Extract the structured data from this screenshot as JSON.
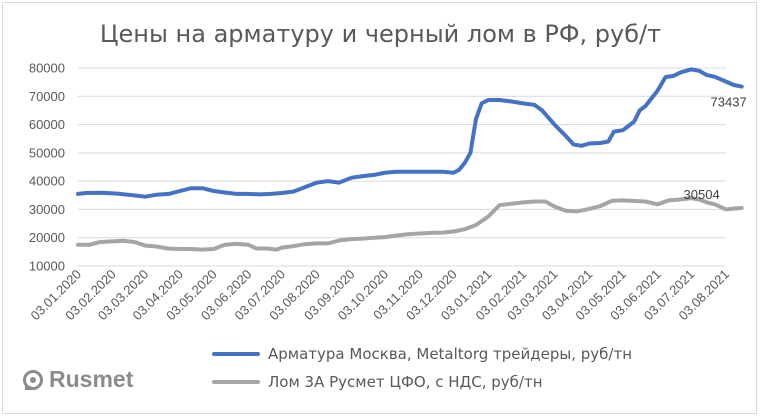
{
  "chart_data": {
    "type": "line",
    "title": "Цены на арматуру и черный лом в РФ, руб/т",
    "ylim": [
      10000,
      80000
    ],
    "yticks": [
      10000,
      20000,
      30000,
      40000,
      50000,
      60000,
      70000,
      80000
    ],
    "xlim": [
      "2020-01-03",
      "2021-08-20"
    ],
    "xticks": [
      {
        "date": "2020-01-03",
        "label": "03.01.2020"
      },
      {
        "date": "2020-02-03",
        "label": "03.02.2020"
      },
      {
        "date": "2020-03-03",
        "label": "03.03.2020"
      },
      {
        "date": "2020-04-03",
        "label": "03.04.2020"
      },
      {
        "date": "2020-05-03",
        "label": "03.05.2020"
      },
      {
        "date": "2020-06-03",
        "label": "03.06.2020"
      },
      {
        "date": "2020-07-03",
        "label": "03.07.2020"
      },
      {
        "date": "2020-08-03",
        "label": "03.08.2020"
      },
      {
        "date": "2020-09-03",
        "label": "03.09.2020"
      },
      {
        "date": "2020-10-03",
        "label": "03.10.2020"
      },
      {
        "date": "2020-11-03",
        "label": "03.11.2020"
      },
      {
        "date": "2020-12-03",
        "label": "03.12.2020"
      },
      {
        "date": "2021-01-03",
        "label": "03.01.2021"
      },
      {
        "date": "2021-02-03",
        "label": "03.02.2021"
      },
      {
        "date": "2021-03-03",
        "label": "03.03.2021"
      },
      {
        "date": "2021-04-03",
        "label": "03.04.2021"
      },
      {
        "date": "2021-05-03",
        "label": "03.05.2021"
      },
      {
        "date": "2021-06-03",
        "label": "03.06.2021"
      },
      {
        "date": "2021-07-03",
        "label": "03.07.2021"
      },
      {
        "date": "2021-08-03",
        "label": "03.08.2021"
      }
    ],
    "grid": true,
    "legend": "bottom",
    "series": [
      {
        "name": "Арматура Москва, Metaltorg трейдеры, руб/тн",
        "color": "#4472c4",
        "end_label": "73437",
        "points": [
          [
            "2020-01-03",
            35500
          ],
          [
            "2020-01-10",
            35800
          ],
          [
            "2020-01-24",
            35900
          ],
          [
            "2020-02-07",
            35600
          ],
          [
            "2020-02-21",
            35000
          ],
          [
            "2020-03-03",
            34500
          ],
          [
            "2020-03-13",
            35200
          ],
          [
            "2020-03-24",
            35500
          ],
          [
            "2020-04-03",
            36500
          ],
          [
            "2020-04-13",
            37500
          ],
          [
            "2020-04-23",
            37500
          ],
          [
            "2020-05-03",
            36500
          ],
          [
            "2020-05-13",
            36000
          ],
          [
            "2020-05-23",
            35500
          ],
          [
            "2020-06-03",
            35500
          ],
          [
            "2020-06-13",
            35300
          ],
          [
            "2020-06-23",
            35500
          ],
          [
            "2020-07-03",
            35800
          ],
          [
            "2020-07-13",
            36300
          ],
          [
            "2020-07-23",
            37800
          ],
          [
            "2020-08-03",
            39500
          ],
          [
            "2020-08-13",
            40000
          ],
          [
            "2020-08-23",
            39500
          ],
          [
            "2020-09-03",
            41200
          ],
          [
            "2020-09-13",
            41800
          ],
          [
            "2020-09-23",
            42200
          ],
          [
            "2020-10-03",
            43000
          ],
          [
            "2020-10-13",
            43300
          ],
          [
            "2020-10-23",
            43300
          ],
          [
            "2020-11-03",
            43300
          ],
          [
            "2020-11-13",
            43300
          ],
          [
            "2020-11-23",
            43300
          ],
          [
            "2020-12-03",
            43000
          ],
          [
            "2020-12-08",
            44000
          ],
          [
            "2020-12-13",
            46500
          ],
          [
            "2020-12-18",
            50000
          ],
          [
            "2020-12-23",
            62000
          ],
          [
            "2020-12-28",
            67500
          ],
          [
            "2021-01-03",
            68700
          ],
          [
            "2021-01-13",
            68700
          ],
          [
            "2021-01-23",
            68200
          ],
          [
            "2021-02-03",
            67500
          ],
          [
            "2021-02-13",
            67000
          ],
          [
            "2021-02-20",
            65000
          ],
          [
            "2021-03-03",
            60000
          ],
          [
            "2021-03-13",
            56000
          ],
          [
            "2021-03-20",
            53000
          ],
          [
            "2021-03-27",
            52500
          ],
          [
            "2021-04-03",
            53300
          ],
          [
            "2021-04-13",
            53500
          ],
          [
            "2021-04-20",
            54000
          ],
          [
            "2021-04-25",
            57500
          ],
          [
            "2021-05-03",
            58000
          ],
          [
            "2021-05-13",
            61000
          ],
          [
            "2021-05-18",
            65000
          ],
          [
            "2021-05-23",
            66500
          ],
          [
            "2021-06-03",
            72000
          ],
          [
            "2021-06-10",
            76800
          ],
          [
            "2021-06-17",
            77200
          ],
          [
            "2021-06-24",
            78500
          ],
          [
            "2021-07-03",
            79500
          ],
          [
            "2021-07-10",
            79000
          ],
          [
            "2021-07-17",
            77500
          ],
          [
            "2021-07-24",
            76900
          ],
          [
            "2021-08-03",
            75200
          ],
          [
            "2021-08-10",
            74000
          ],
          [
            "2021-08-17",
            73437
          ]
        ]
      },
      {
        "name": "Лом 3А Русмет ЦФО, с НДС, руб/тн",
        "color": "#a5a5a5",
        "end_label": "30504",
        "points": [
          [
            "2020-01-03",
            17500
          ],
          [
            "2020-01-13",
            17500
          ],
          [
            "2020-01-23",
            18500
          ],
          [
            "2020-02-03",
            18700
          ],
          [
            "2020-02-13",
            18900
          ],
          [
            "2020-02-23",
            18400
          ],
          [
            "2020-03-03",
            17200
          ],
          [
            "2020-03-13",
            16900
          ],
          [
            "2020-03-23",
            16200
          ],
          [
            "2020-04-03",
            16000
          ],
          [
            "2020-04-13",
            16000
          ],
          [
            "2020-04-23",
            15800
          ],
          [
            "2020-05-03",
            16000
          ],
          [
            "2020-05-13",
            17500
          ],
          [
            "2020-05-23",
            17800
          ],
          [
            "2020-06-03",
            17500
          ],
          [
            "2020-06-10",
            16200
          ],
          [
            "2020-06-20",
            16200
          ],
          [
            "2020-06-28",
            15800
          ],
          [
            "2020-07-03",
            16500
          ],
          [
            "2020-07-13",
            17000
          ],
          [
            "2020-07-23",
            17700
          ],
          [
            "2020-08-03",
            18000
          ],
          [
            "2020-08-13",
            18000
          ],
          [
            "2020-08-23",
            19000
          ],
          [
            "2020-09-03",
            19500
          ],
          [
            "2020-09-13",
            19700
          ],
          [
            "2020-09-23",
            20000
          ],
          [
            "2020-10-03",
            20200
          ],
          [
            "2020-10-13",
            20800
          ],
          [
            "2020-10-23",
            21200
          ],
          [
            "2020-11-03",
            21500
          ],
          [
            "2020-11-13",
            21700
          ],
          [
            "2020-11-23",
            21800
          ],
          [
            "2020-12-03",
            22200
          ],
          [
            "2020-12-13",
            23000
          ],
          [
            "2020-12-23",
            24500
          ],
          [
            "2021-01-03",
            27500
          ],
          [
            "2021-01-13",
            31500
          ],
          [
            "2021-01-23",
            32000
          ],
          [
            "2021-02-03",
            32500
          ],
          [
            "2021-02-13",
            32800
          ],
          [
            "2021-02-23",
            32800
          ],
          [
            "2021-03-03",
            31000
          ],
          [
            "2021-03-13",
            29500
          ],
          [
            "2021-03-23",
            29300
          ],
          [
            "2021-04-03",
            30200
          ],
          [
            "2021-04-13",
            31200
          ],
          [
            "2021-04-23",
            33000
          ],
          [
            "2021-05-03",
            33200
          ],
          [
            "2021-05-13",
            33000
          ],
          [
            "2021-05-23",
            32800
          ],
          [
            "2021-06-03",
            31800
          ],
          [
            "2021-06-13",
            33200
          ],
          [
            "2021-06-23",
            33500
          ],
          [
            "2021-07-03",
            34000
          ],
          [
            "2021-07-10",
            33500
          ],
          [
            "2021-07-17",
            32500
          ],
          [
            "2021-07-24",
            31800
          ],
          [
            "2021-08-03",
            30000
          ],
          [
            "2021-08-10",
            30300
          ],
          [
            "2021-08-17",
            30504
          ]
        ]
      }
    ]
  },
  "logo": {
    "text": "Rusmet",
    "color": "#8c8c8c"
  }
}
